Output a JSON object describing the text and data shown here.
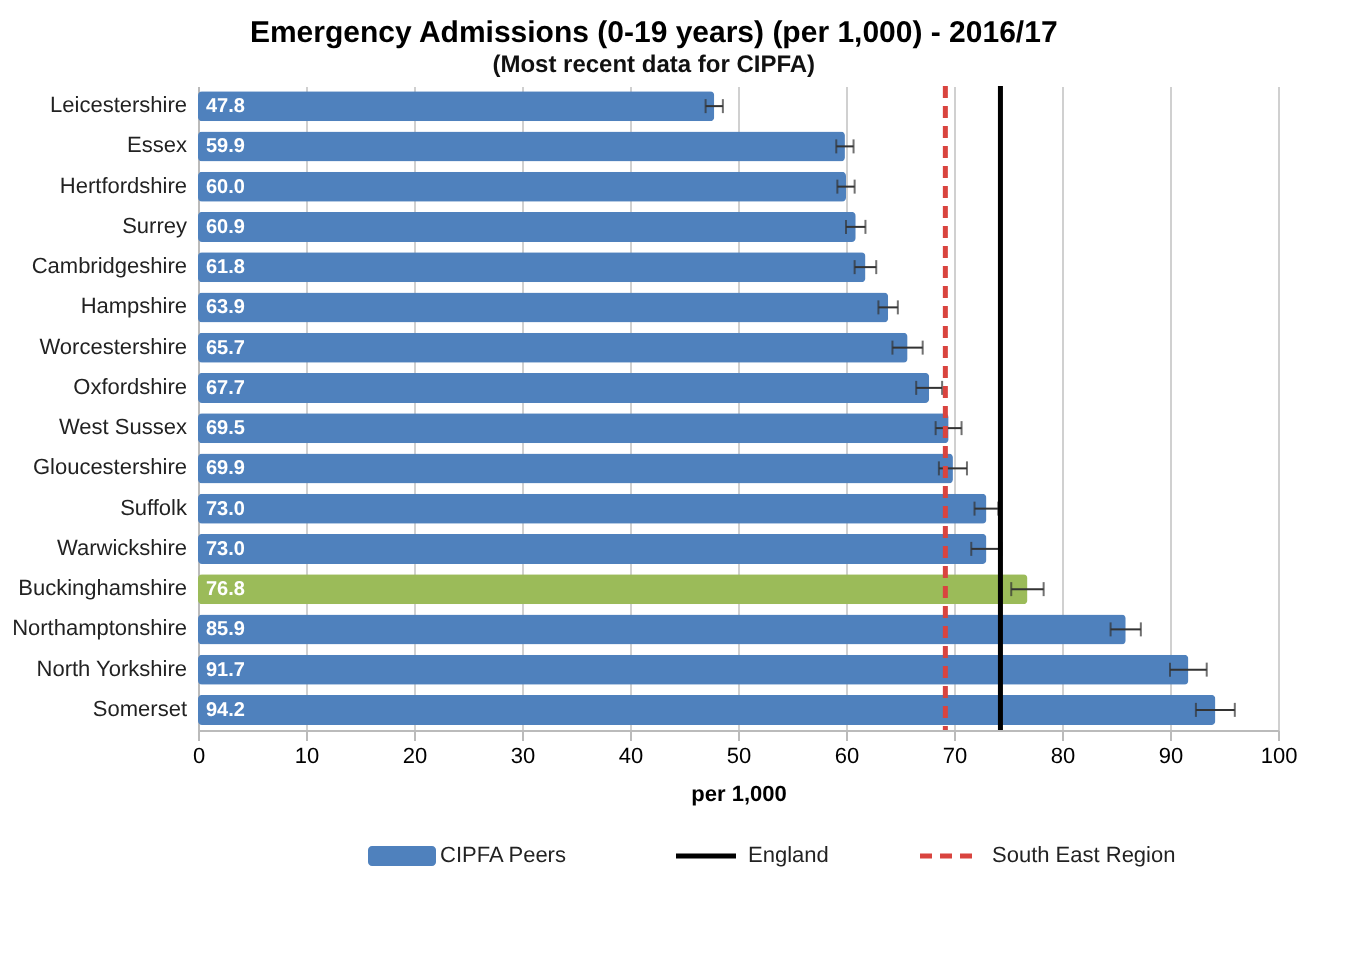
{
  "chart_data": {
    "type": "bar",
    "orientation": "horizontal",
    "title": "Emergency Admissions (0-19 years) (per 1,000) - 2016/17",
    "subtitle": "(Most recent data for CIPFA)",
    "xlabel": "per 1,000",
    "categories": [
      "Leicestershire",
      "Essex",
      "Hertfordshire",
      "Surrey",
      "Cambridgeshire",
      "Hampshire",
      "Worcestershire",
      "Oxfordshire",
      "West Sussex",
      "Gloucestershire",
      "Suffolk",
      "Warwickshire",
      "Buckinghamshire",
      "Northamptonshire",
      "North Yorkshire",
      "Somerset"
    ],
    "series": [
      {
        "name": "CIPFA Peers",
        "color": "#4f81bd",
        "colors": [
          "#4f81bd",
          "#4f81bd",
          "#4f81bd",
          "#4f81bd",
          "#4f81bd",
          "#4f81bd",
          "#4f81bd",
          "#4f81bd",
          "#4f81bd",
          "#4f81bd",
          "#4f81bd",
          "#4f81bd",
          "#9bbb59",
          "#4f81bd",
          "#4f81bd",
          "#4f81bd"
        ],
        "values": [
          47.8,
          59.9,
          60.0,
          60.9,
          61.8,
          63.9,
          65.7,
          67.7,
          69.5,
          69.9,
          73.0,
          73.0,
          76.8,
          85.9,
          91.7,
          94.2
        ],
        "value_labels": [
          "47.8",
          "59.9",
          "60.0",
          "60.9",
          "61.8",
          "63.9",
          "65.7",
          "67.7",
          "69.5",
          "69.9",
          "73.0",
          "73.0",
          "76.8",
          "85.9",
          "91.7",
          "94.2"
        ],
        "errors": [
          0.8,
          0.8,
          0.8,
          0.9,
          1.0,
          0.9,
          1.4,
          1.2,
          1.2,
          1.3,
          1.1,
          1.4,
          1.5,
          1.4,
          1.7,
          1.8
        ]
      }
    ],
    "xlim": [
      0,
      100
    ],
    "xticks": [
      0,
      10,
      20,
      30,
      40,
      50,
      60,
      70,
      80,
      90,
      100
    ],
    "grid": "x",
    "legend": "bottom",
    "ref_lines": [
      {
        "axis": "x",
        "value": 74.3,
        "label": "England",
        "color": "#000000",
        "line_style": "solid"
      },
      {
        "axis": "x",
        "value": 69.2,
        "label": "South East Region",
        "color": "#d9443f",
        "line_style": "dashed"
      }
    ]
  }
}
